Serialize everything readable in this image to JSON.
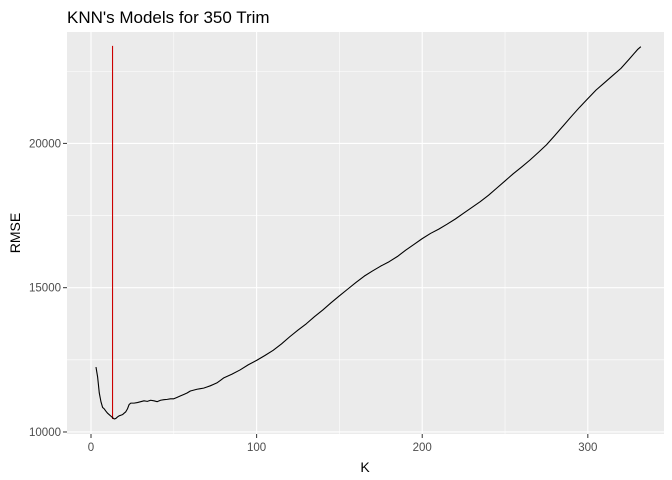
{
  "chart_data": {
    "type": "line",
    "title": "KNN's Models for 350 Trim",
    "xlabel": "K",
    "ylabel": "RMSE",
    "xlim": [
      -14.5,
      346
    ],
    "ylim": [
      9930,
      23860
    ],
    "x_ticks": [
      0,
      100,
      200,
      300
    ],
    "x_tick_labels": [
      "0",
      "100",
      "200",
      "300"
    ],
    "y_ticks": [
      10000,
      15000,
      20000
    ],
    "y_tick_labels": [
      "10000",
      "15000",
      "20000"
    ],
    "grid": true,
    "panel_background": "#ebebeb",
    "series": [
      {
        "color": "#000000",
        "x": [
          3,
          4,
          5,
          6,
          7,
          8,
          9,
          10,
          11,
          12,
          13,
          14,
          15,
          16,
          17,
          18,
          19,
          20,
          21,
          22,
          23,
          24,
          26,
          28,
          30,
          32,
          34,
          36,
          38,
          40,
          42,
          44,
          46,
          48,
          50,
          52,
          54,
          56,
          58,
          60,
          62,
          64,
          66,
          68,
          70,
          72,
          74,
          76,
          78,
          80,
          85,
          90,
          95,
          100,
          105,
          110,
          115,
          120,
          125,
          130,
          135,
          140,
          145,
          150,
          155,
          160,
          165,
          170,
          175,
          180,
          185,
          190,
          195,
          200,
          205,
          210,
          215,
          220,
          225,
          230,
          235,
          240,
          245,
          250,
          255,
          260,
          265,
          270,
          275,
          280,
          285,
          290,
          295,
          300,
          305,
          310,
          315,
          320,
          325,
          330,
          332
        ],
        "y": [
          12250,
          11900,
          11350,
          11050,
          10850,
          10800,
          10720,
          10650,
          10600,
          10550,
          10500,
          10450,
          10470,
          10520,
          10560,
          10580,
          10600,
          10650,
          10700,
          10800,
          10950,
          11000,
          11000,
          11020,
          11050,
          11080,
          11060,
          11100,
          11080,
          11050,
          11100,
          11120,
          11130,
          11150,
          11150,
          11200,
          11250,
          11300,
          11350,
          11420,
          11450,
          11480,
          11500,
          11520,
          11560,
          11600,
          11650,
          11700,
          11780,
          11870,
          12000,
          12150,
          12330,
          12480,
          12650,
          12830,
          13050,
          13300,
          13530,
          13750,
          14000,
          14230,
          14480,
          14720,
          14950,
          15180,
          15400,
          15580,
          15750,
          15900,
          16080,
          16300,
          16500,
          16700,
          16880,
          17030,
          17200,
          17380,
          17580,
          17780,
          17980,
          18200,
          18450,
          18700,
          18950,
          19180,
          19420,
          19680,
          19950,
          20270,
          20600,
          20930,
          21250,
          21550,
          21850,
          22100,
          22350,
          22600,
          22920,
          23250,
          23350
        ]
      }
    ],
    "vline": {
      "x": 13,
      "y_start": 10450,
      "y_end": 23380,
      "color": "#cc0000"
    }
  }
}
